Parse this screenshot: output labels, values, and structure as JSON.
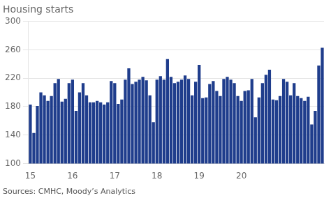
{
  "chart_data": {
    "type": "bar",
    "title": "Housing starts",
    "source": "Sources: CMHC, Moody’s Analytics",
    "categories": [
      "15",
      null,
      null,
      null,
      null,
      null,
      null,
      null,
      null,
      null,
      null,
      null,
      "16",
      null,
      null,
      null,
      null,
      null,
      null,
      null,
      null,
      null,
      null,
      null,
      "17",
      null,
      null,
      null,
      null,
      null,
      null,
      null,
      null,
      null,
      null,
      null,
      "18",
      null,
      null,
      null,
      null,
      null,
      null,
      null,
      null,
      null,
      null,
      null,
      "19",
      null,
      null,
      null,
      null,
      null,
      null,
      null,
      null,
      null,
      null,
      null,
      "20",
      null,
      null,
      null,
      null,
      null,
      null,
      null,
      null,
      null,
      null,
      null,
      null,
      null,
      null,
      null,
      null,
      null,
      null,
      null,
      null,
      null,
      null,
      null
    ],
    "values": [
      183,
      143,
      181,
      200,
      196,
      188,
      195,
      213,
      219,
      187,
      191,
      213,
      218,
      174,
      200,
      213,
      196,
      186,
      186,
      188,
      186,
      183,
      186,
      216,
      213,
      184,
      190,
      218,
      234,
      212,
      215,
      218,
      222,
      217,
      196,
      158,
      218,
      223,
      218,
      247,
      222,
      213,
      215,
      218,
      224,
      219,
      196,
      215,
      239,
      192,
      193,
      212,
      216,
      202,
      195,
      219,
      222,
      218,
      213,
      195,
      188,
      202,
      203,
      219,
      165,
      193,
      213,
      225,
      232,
      190,
      189,
      195,
      219,
      215,
      196,
      213,
      195,
      192,
      188,
      194,
      155,
      174,
      238,
      263
    ],
    "color": "#1f3d8c",
    "ylim": [
      100,
      300
    ],
    "yticks": [
      100,
      140,
      180,
      220,
      260,
      300
    ],
    "grid": true
  }
}
